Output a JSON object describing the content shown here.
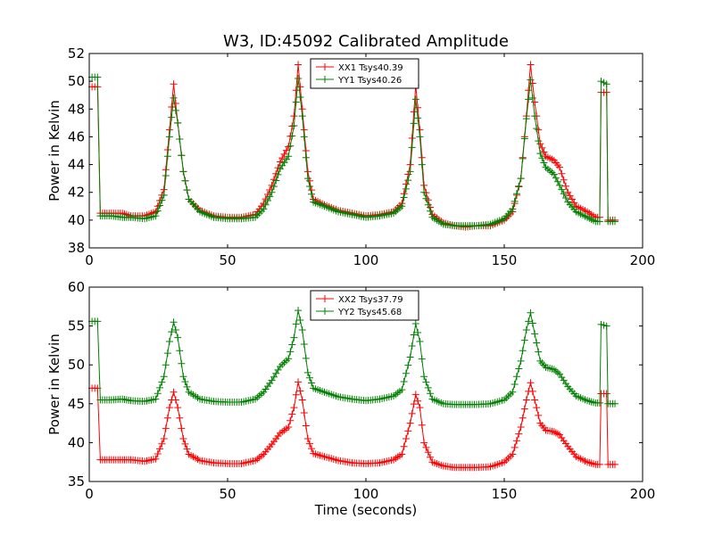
{
  "chart_data": [
    {
      "type": "line",
      "title": "W3, ID:45092 Calibrated Amplitude",
      "xlabel": "",
      "ylabel": "Power in Kelvin",
      "xlim": [
        0,
        200
      ],
      "ylim": [
        38,
        52
      ],
      "xticks": [
        "0",
        "50",
        "100",
        "150",
        "200"
      ],
      "yticks": [
        "38",
        "40",
        "42",
        "44",
        "46",
        "48",
        "50",
        "52"
      ],
      "legend_position": "top-center",
      "series": [
        {
          "name": "XX1 Tsys40.39",
          "color": "#ff0000",
          "points": [
            [
              1,
              49.6
            ],
            [
              2,
              49.6
            ],
            [
              3,
              49.6
            ],
            [
              4,
              40.5
            ],
            [
              8,
              40.5
            ],
            [
              12,
              40.5
            ],
            [
              15,
              40.3
            ],
            [
              20,
              40.3
            ],
            [
              24,
              40.6
            ],
            [
              27,
              42.2
            ],
            [
              29,
              46.5
            ],
            [
              30.5,
              49.8
            ],
            [
              32,
              47.0
            ],
            [
              34,
              43.5
            ],
            [
              36,
              41.5
            ],
            [
              40,
              40.7
            ],
            [
              45,
              40.3
            ],
            [
              50,
              40.2
            ],
            [
              55,
              40.2
            ],
            [
              60,
              40.4
            ],
            [
              63,
              41.2
            ],
            [
              66,
              42.5
            ],
            [
              69,
              44.2
            ],
            [
              72,
              45.3
            ],
            [
              74,
              47.5
            ],
            [
              75.5,
              51.2
            ],
            [
              77,
              48.0
            ],
            [
              79,
              43.5
            ],
            [
              81,
              41.5
            ],
            [
              85,
              41.1
            ],
            [
              90,
              40.7
            ],
            [
              95,
              40.5
            ],
            [
              100,
              40.3
            ],
            [
              105,
              40.4
            ],
            [
              110,
              40.6
            ],
            [
              113,
              41.2
            ],
            [
              116,
              44.0
            ],
            [
              118,
              49.7
            ],
            [
              119.5,
              46.5
            ],
            [
              121,
              42.5
            ],
            [
              124,
              40.4
            ],
            [
              128,
              39.8
            ],
            [
              132,
              39.6
            ],
            [
              136,
              39.5
            ],
            [
              140,
              39.6
            ],
            [
              145,
              39.6
            ],
            [
              150,
              40.0
            ],
            [
              153,
              40.6
            ],
            [
              156,
              43.0
            ],
            [
              158,
              47.5
            ],
            [
              159.5,
              51.2
            ],
            [
              161,
              48.5
            ],
            [
              163,
              45.5
            ],
            [
              165,
              44.6
            ],
            [
              168,
              44.3
            ],
            [
              170,
              43.8
            ],
            [
              173,
              42.0
            ],
            [
              176,
              41.0
            ],
            [
              180,
              40.6
            ],
            [
              183,
              40.2
            ],
            [
              184.5,
              40.2
            ],
            [
              185,
              49.2
            ],
            [
              186,
              49.2
            ],
            [
              187,
              49.2
            ],
            [
              187.5,
              40.0
            ],
            [
              190,
              40.0
            ]
          ]
        },
        {
          "name": "YY1 Tsys40.26",
          "color": "#008000",
          "points": [
            [
              1,
              50.3
            ],
            [
              2,
              50.3
            ],
            [
              3,
              50.3
            ],
            [
              4,
              40.3
            ],
            [
              8,
              40.3
            ],
            [
              12,
              40.2
            ],
            [
              15,
              40.2
            ],
            [
              20,
              40.1
            ],
            [
              24,
              40.3
            ],
            [
              27,
              41.8
            ],
            [
              29,
              46.0
            ],
            [
              30.5,
              48.8
            ],
            [
              32,
              47.0
            ],
            [
              34,
              43.5
            ],
            [
              36,
              41.5
            ],
            [
              40,
              40.6
            ],
            [
              45,
              40.2
            ],
            [
              50,
              40.1
            ],
            [
              55,
              40.1
            ],
            [
              60,
              40.2
            ],
            [
              63,
              40.8
            ],
            [
              66,
              42.0
            ],
            [
              69,
              43.7
            ],
            [
              72,
              44.6
            ],
            [
              74,
              46.8
            ],
            [
              75.5,
              50.2
            ],
            [
              77,
              47.5
            ],
            [
              79,
              43.0
            ],
            [
              81,
              41.3
            ],
            [
              85,
              41.0
            ],
            [
              90,
              40.6
            ],
            [
              95,
              40.4
            ],
            [
              100,
              40.2
            ],
            [
              105,
              40.3
            ],
            [
              110,
              40.5
            ],
            [
              113,
              41.0
            ],
            [
              116,
              43.5
            ],
            [
              118,
              48.7
            ],
            [
              119.5,
              46.0
            ],
            [
              121,
              42.0
            ],
            [
              124,
              40.2
            ],
            [
              128,
              39.7
            ],
            [
              132,
              39.6
            ],
            [
              136,
              39.6
            ],
            [
              140,
              39.6
            ],
            [
              145,
              39.7
            ],
            [
              150,
              40.1
            ],
            [
              153,
              40.8
            ],
            [
              156,
              43.0
            ],
            [
              158,
              47.3
            ],
            [
              159.5,
              50.1
            ],
            [
              161,
              47.5
            ],
            [
              163,
              44.8
            ],
            [
              165,
              43.8
            ],
            [
              168,
              43.3
            ],
            [
              170,
              42.5
            ],
            [
              173,
              41.3
            ],
            [
              176,
              40.6
            ],
            [
              180,
              40.2
            ],
            [
              183,
              39.9
            ],
            [
              184.5,
              39.9
            ],
            [
              185,
              50.0
            ],
            [
              186,
              49.9
            ],
            [
              187,
              49.8
            ],
            [
              187.5,
              39.9
            ],
            [
              190,
              39.9
            ]
          ]
        }
      ]
    },
    {
      "type": "line",
      "title": "",
      "xlabel": "Time (seconds)",
      "ylabel": "Power in Kelvin",
      "xlim": [
        0,
        200
      ],
      "ylim": [
        35,
        60
      ],
      "xticks": [
        "0",
        "50",
        "100",
        "150",
        "200"
      ],
      "yticks": [
        "35",
        "40",
        "45",
        "50",
        "55",
        "60"
      ],
      "legend_position": "top-center",
      "series": [
        {
          "name": "XX2 Tsys37.79",
          "color": "#ff0000",
          "points": [
            [
              1,
              47.0
            ],
            [
              2,
              47.0
            ],
            [
              3,
              47.0
            ],
            [
              4,
              37.8
            ],
            [
              8,
              37.8
            ],
            [
              12,
              37.8
            ],
            [
              15,
              37.8
            ],
            [
              20,
              37.6
            ],
            [
              24,
              37.9
            ],
            [
              27,
              40.5
            ],
            [
              29,
              44.5
            ],
            [
              30.5,
              46.5
            ],
            [
              32,
              44.5
            ],
            [
              34,
              40.5
            ],
            [
              36,
              38.5
            ],
            [
              40,
              37.7
            ],
            [
              45,
              37.4
            ],
            [
              50,
              37.3
            ],
            [
              55,
              37.3
            ],
            [
              60,
              37.7
            ],
            [
              63,
              38.5
            ],
            [
              66,
              39.8
            ],
            [
              69,
              41.2
            ],
            [
              72,
              42.0
            ],
            [
              74,
              44.5
            ],
            [
              75.5,
              47.8
            ],
            [
              77,
              45.5
            ],
            [
              79,
              40.5
            ],
            [
              81,
              38.6
            ],
            [
              85,
              38.2
            ],
            [
              90,
              37.7
            ],
            [
              95,
              37.4
            ],
            [
              100,
              37.3
            ],
            [
              105,
              37.4
            ],
            [
              110,
              37.8
            ],
            [
              113,
              38.5
            ],
            [
              116,
              42.5
            ],
            [
              118,
              46.2
            ],
            [
              119.5,
              44.5
            ],
            [
              121,
              40.0
            ],
            [
              124,
              37.5
            ],
            [
              128,
              37.0
            ],
            [
              132,
              36.8
            ],
            [
              136,
              36.8
            ],
            [
              140,
              36.8
            ],
            [
              145,
              36.9
            ],
            [
              150,
              37.5
            ],
            [
              153,
              38.5
            ],
            [
              156,
              42.0
            ],
            [
              158,
              45.5
            ],
            [
              159.5,
              47.7
            ],
            [
              161,
              45.5
            ],
            [
              163,
              42.5
            ],
            [
              165,
              41.6
            ],
            [
              168,
              41.4
            ],
            [
              170,
              41.0
            ],
            [
              173,
              39.5
            ],
            [
              176,
              38.2
            ],
            [
              180,
              37.5
            ],
            [
              183,
              37.2
            ],
            [
              184.5,
              37.2
            ],
            [
              185,
              46.3
            ],
            [
              186,
              46.3
            ],
            [
              187,
              46.3
            ],
            [
              187.5,
              37.2
            ],
            [
              190,
              37.2
            ]
          ]
        },
        {
          "name": "YY2 Tsys45.68",
          "color": "#008000",
          "points": [
            [
              1,
              55.6
            ],
            [
              2,
              55.6
            ],
            [
              3,
              55.6
            ],
            [
              4,
              45.5
            ],
            [
              8,
              45.5
            ],
            [
              12,
              45.6
            ],
            [
              15,
              45.4
            ],
            [
              20,
              45.3
            ],
            [
              24,
              45.6
            ],
            [
              27,
              48.5
            ],
            [
              29,
              53.0
            ],
            [
              30.5,
              55.5
            ],
            [
              32,
              53.5
            ],
            [
              34,
              48.5
            ],
            [
              36,
              46.5
            ],
            [
              40,
              45.6
            ],
            [
              45,
              45.3
            ],
            [
              50,
              45.2
            ],
            [
              55,
              45.2
            ],
            [
              60,
              45.6
            ],
            [
              63,
              46.5
            ],
            [
              66,
              48.0
            ],
            [
              69,
              49.8
            ],
            [
              72,
              50.8
            ],
            [
              74,
              53.5
            ],
            [
              75.5,
              57.0
            ],
            [
              77,
              54.5
            ],
            [
              79,
              49.0
            ],
            [
              81,
              47.0
            ],
            [
              85,
              46.5
            ],
            [
              90,
              45.9
            ],
            [
              95,
              45.6
            ],
            [
              100,
              45.4
            ],
            [
              105,
              45.6
            ],
            [
              110,
              46.0
            ],
            [
              113,
              46.8
            ],
            [
              116,
              51.0
            ],
            [
              118,
              55.3
            ],
            [
              119.5,
              53.0
            ],
            [
              121,
              48.5
            ],
            [
              124,
              45.6
            ],
            [
              128,
              45.0
            ],
            [
              132,
              44.9
            ],
            [
              136,
              44.9
            ],
            [
              140,
              44.9
            ],
            [
              145,
              45.0
            ],
            [
              150,
              45.5
            ],
            [
              153,
              46.5
            ],
            [
              156,
              50.5
            ],
            [
              158,
              54.5
            ],
            [
              159.5,
              56.7
            ],
            [
              161,
              54.0
            ],
            [
              163,
              50.5
            ],
            [
              165,
              49.7
            ],
            [
              168,
              49.4
            ],
            [
              170,
              48.8
            ],
            [
              173,
              47.2
            ],
            [
              176,
              46.0
            ],
            [
              180,
              45.4
            ],
            [
              183,
              45.1
            ],
            [
              184.5,
              45.1
            ],
            [
              185,
              55.2
            ],
            [
              186,
              55.1
            ],
            [
              187,
              55.0
            ],
            [
              187.5,
              45.0
            ],
            [
              190,
              45.0
            ]
          ]
        }
      ]
    }
  ]
}
